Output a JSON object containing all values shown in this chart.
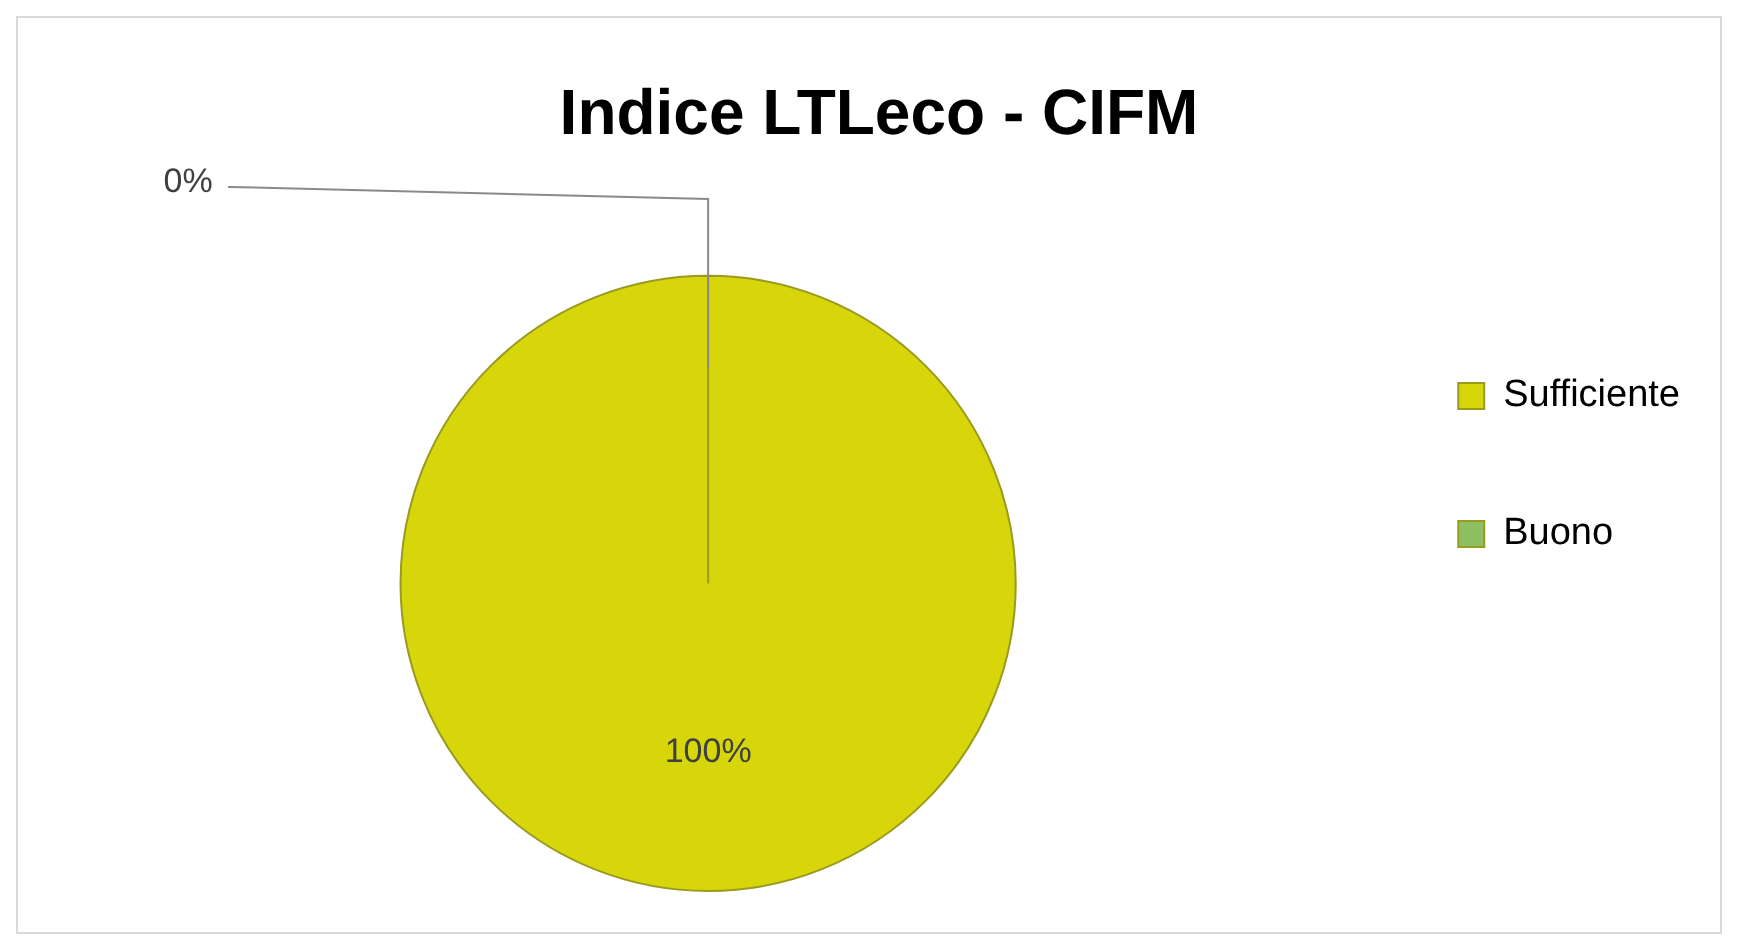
{
  "chart_data": {
    "type": "pie",
    "title": "Indice LTLeco - CIFM",
    "categories": [
      "Sufficiente",
      "Buono"
    ],
    "values": [
      100,
      0
    ],
    "colors": [
      "#d6d60a",
      "#8cc063"
    ],
    "value_labels": [
      "100%",
      "0%"
    ],
    "legend": "right"
  }
}
